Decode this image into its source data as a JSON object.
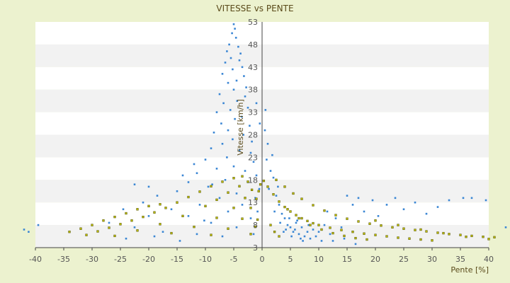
{
  "chart_data": {
    "type": "scatter",
    "title": "VITESSE vs PENTE",
    "xlabel": "Pente [%]",
    "ylabel": "Vitesse [km/h]",
    "xlim": [
      -40,
      40
    ],
    "ylim": [
      3,
      53
    ],
    "x_ticks": [
      "-40",
      "-35",
      "-30",
      "-25",
      "-20",
      "-15",
      "-10",
      "-5",
      "0",
      "5",
      "10",
      "15",
      "20",
      "25",
      "30",
      "35",
      "40"
    ],
    "y_ticks": [
      "3",
      "8",
      "13",
      "18",
      "23",
      "28",
      "33",
      "38",
      "43",
      "48",
      "53"
    ],
    "grid": "horizontal bands",
    "legend": "none",
    "colors": {
      "background": "#ecf2cf",
      "plot_band_light": "#ffffff",
      "plot_band_dark": "#f2f2f2",
      "series_primary": "#3a86d4",
      "series_secondary": "#b9b800",
      "axis": "#444444"
    },
    "series": [
      {
        "points": [
          [
            -5.0,
            52.5
          ],
          [
            -4.8,
            51.5
          ],
          [
            -5.3,
            50.5
          ],
          [
            -4.6,
            49.5
          ],
          [
            -5.8,
            48.0
          ],
          [
            -4.2,
            47.5
          ],
          [
            -6.2,
            46.5
          ],
          [
            -3.8,
            46.0
          ],
          [
            -5.5,
            45.0
          ],
          [
            -4.0,
            44.5
          ],
          [
            -6.5,
            44.0
          ],
          [
            -3.5,
            43.0
          ],
          [
            -5.2,
            42.5
          ],
          [
            -7.0,
            41.5
          ],
          [
            -3.2,
            41.0
          ],
          [
            -4.5,
            40.0
          ],
          [
            -6.0,
            39.5
          ],
          [
            -2.8,
            38.5
          ],
          [
            -5.0,
            38.0
          ],
          [
            -7.5,
            37.0
          ],
          [
            -3.0,
            36.5
          ],
          [
            -4.4,
            35.5
          ],
          [
            -6.8,
            35.0
          ],
          [
            -2.5,
            34.0
          ],
          [
            -5.6,
            33.5
          ],
          [
            -8.0,
            33.0
          ],
          [
            -3.6,
            32.0
          ],
          [
            -4.8,
            31.5
          ],
          [
            -7.2,
            30.5
          ],
          [
            -2.2,
            30.0
          ],
          [
            -6.0,
            29.0
          ],
          [
            -8.5,
            28.5
          ],
          [
            -3.3,
            28.0
          ],
          [
            -5.2,
            27.0
          ],
          [
            -1.8,
            26.5
          ],
          [
            -7.0,
            26.0
          ],
          [
            -9.0,
            25.0
          ],
          [
            -4.0,
            24.5
          ],
          [
            -2.0,
            24.0
          ],
          [
            -6.2,
            23.0
          ],
          [
            -10.0,
            22.5
          ],
          [
            -1.5,
            22.0
          ],
          [
            -5.0,
            21.0
          ],
          [
            -8.0,
            20.5
          ],
          [
            -3.0,
            20.0
          ],
          [
            -11.5,
            19.5
          ],
          [
            -1.0,
            19.0
          ],
          [
            -6.5,
            18.0
          ],
          [
            -13.0,
            17.5
          ],
          [
            -2.5,
            17.5
          ],
          [
            -9.5,
            16.5
          ],
          [
            -0.5,
            16.0
          ],
          [
            -15.0,
            15.5
          ],
          [
            -4.5,
            15.0
          ],
          [
            -18.5,
            14.5
          ],
          [
            -7.5,
            14.0
          ],
          [
            -1.2,
            14.0
          ],
          [
            -21.0,
            13.0
          ],
          [
            -11.0,
            12.5
          ],
          [
            -3.5,
            12.5
          ],
          [
            -24.5,
            11.5
          ],
          [
            -16.0,
            11.5
          ],
          [
            -6.0,
            11.0
          ],
          [
            -0.8,
            11.0
          ],
          [
            -20.0,
            10.0
          ],
          [
            -13.0,
            10.0
          ],
          [
            -2.0,
            9.5
          ],
          [
            -27.0,
            8.5
          ],
          [
            -9.0,
            8.5
          ],
          [
            -22.5,
            7.5
          ],
          [
            -4.5,
            7.5
          ],
          [
            -17.5,
            6.5
          ],
          [
            -11.5,
            6.0
          ],
          [
            -1.5,
            6.0
          ],
          [
            -24.0,
            5.0
          ],
          [
            -19.0,
            5.5
          ],
          [
            -7.0,
            5.5
          ],
          [
            -14.5,
            4.5
          ],
          [
            0.5,
            29.0
          ],
          [
            1.0,
            26.0
          ],
          [
            0.8,
            22.5
          ],
          [
            1.5,
            20.0
          ],
          [
            2.0,
            18.5
          ],
          [
            1.2,
            16.0
          ],
          [
            2.5,
            14.5
          ],
          [
            3.0,
            12.5
          ],
          [
            2.2,
            11.0
          ],
          [
            3.5,
            10.5
          ],
          [
            4.0,
            9.5
          ],
          [
            3.2,
            8.5
          ],
          [
            4.5,
            8.0
          ],
          [
            5.0,
            7.5
          ],
          [
            4.2,
            7.0
          ],
          [
            5.5,
            6.5
          ],
          [
            6.0,
            8.5
          ],
          [
            6.5,
            6.0
          ],
          [
            7.0,
            7.5
          ],
          [
            7.5,
            5.5
          ],
          [
            8.0,
            6.5
          ],
          [
            8.5,
            5.0
          ],
          [
            9.0,
            7.0
          ],
          [
            5.2,
            5.5
          ],
          [
            6.2,
            9.0
          ],
          [
            7.2,
            4.5
          ],
          [
            8.2,
            8.0
          ],
          [
            9.5,
            5.5
          ],
          [
            10.0,
            6.5
          ],
          [
            10.5,
            4.5
          ],
          [
            3.8,
            6.5
          ],
          [
            4.8,
            9.5
          ],
          [
            5.8,
            7.0
          ],
          [
            6.8,
            5.0
          ],
          [
            11.0,
            8.0
          ],
          [
            12.0,
            6.0
          ],
          [
            13.0,
            9.5
          ],
          [
            14.0,
            7.5
          ],
          [
            15.0,
            14.5
          ],
          [
            16.0,
            12.5
          ],
          [
            17.0,
            14.0
          ],
          [
            18.0,
            11.0
          ],
          [
            19.5,
            13.5
          ],
          [
            20.5,
            10.0
          ],
          [
            22.0,
            12.5
          ],
          [
            23.5,
            14.0
          ],
          [
            25.0,
            11.5
          ],
          [
            27.0,
            13.0
          ],
          [
            29.0,
            10.5
          ],
          [
            31.0,
            12.0
          ],
          [
            33.0,
            13.5
          ],
          [
            35.5,
            14.0
          ],
          [
            37.0,
            14.0
          ],
          [
            39.5,
            13.5
          ],
          [
            12.5,
            4.5
          ],
          [
            14.5,
            5.0
          ],
          [
            16.5,
            3.8
          ],
          [
            11.5,
            11.0
          ],
          [
            -42.0,
            7.0
          ],
          [
            -41.2,
            6.5
          ],
          [
            -39.5,
            8.0
          ],
          [
            43.0,
            7.5
          ],
          [
            44.0,
            8.5
          ],
          [
            -20.0,
            16.5
          ],
          [
            -22.5,
            17.0
          ],
          [
            -1.0,
            35.0
          ],
          [
            0.6,
            33.5
          ],
          [
            -0.4,
            30.5
          ],
          [
            1.8,
            23.5
          ],
          [
            2.8,
            16.5
          ],
          [
            -12.0,
            21.5
          ],
          [
            -14.0,
            19.0
          ],
          [
            -8.8,
            17.0
          ],
          [
            -10.2,
            9.0
          ]
        ]
      },
      {
        "points": [
          [
            -34.0,
            6.5
          ],
          [
            -32.0,
            7.2
          ],
          [
            -30.0,
            8.0
          ],
          [
            -28.0,
            9.0
          ],
          [
            -26.0,
            9.8
          ],
          [
            -24.0,
            10.6
          ],
          [
            -22.0,
            11.5
          ],
          [
            -20.0,
            12.2
          ],
          [
            -18.0,
            12.6
          ],
          [
            -31.0,
            5.8
          ],
          [
            -29.0,
            6.6
          ],
          [
            -27.0,
            7.4
          ],
          [
            -25.0,
            8.2
          ],
          [
            -23.0,
            9.0
          ],
          [
            -21.0,
            9.8
          ],
          [
            -19.0,
            10.8
          ],
          [
            -17.0,
            11.8
          ],
          [
            -15.0,
            13.0
          ],
          [
            -13.0,
            14.2
          ],
          [
            -11.0,
            15.4
          ],
          [
            -9.0,
            16.6
          ],
          [
            -7.0,
            17.6
          ],
          [
            -5.0,
            18.4
          ],
          [
            -3.5,
            18.8
          ],
          [
            -26.0,
            5.6
          ],
          [
            -22.0,
            6.8
          ],
          [
            -18.0,
            8.2
          ],
          [
            -14.0,
            10.0
          ],
          [
            -10.0,
            12.2
          ],
          [
            -8.0,
            13.6
          ],
          [
            -6.0,
            15.2
          ],
          [
            -4.0,
            16.6
          ],
          [
            -2.5,
            17.6
          ],
          [
            -16.0,
            6.2
          ],
          [
            -12.0,
            7.6
          ],
          [
            -8.0,
            9.6
          ],
          [
            -5.0,
            11.8
          ],
          [
            -3.0,
            14.0
          ],
          [
            -1.8,
            15.8
          ],
          [
            -9.0,
            5.8
          ],
          [
            -6.0,
            7.2
          ],
          [
            -3.5,
            9.4
          ],
          [
            -2.0,
            11.8
          ],
          [
            -1.0,
            13.8
          ],
          [
            -0.6,
            15.5
          ],
          [
            -0.3,
            17.0
          ],
          [
            0.3,
            17.8
          ],
          [
            1.0,
            16.5
          ],
          [
            2.0,
            14.8
          ],
          [
            3.0,
            13.2
          ],
          [
            4.0,
            12.0
          ],
          [
            5.0,
            11.0
          ],
          [
            6.0,
            10.2
          ],
          [
            7.0,
            9.5
          ],
          [
            8.0,
            8.9
          ],
          [
            9.0,
            8.4
          ],
          [
            10.0,
            8.0
          ],
          [
            12.0,
            7.4
          ],
          [
            14.0,
            6.9
          ],
          [
            16.0,
            6.5
          ],
          [
            18.0,
            6.1
          ],
          [
            20.0,
            5.8
          ],
          [
            22.0,
            5.5
          ],
          [
            24.0,
            5.2
          ],
          [
            26.0,
            5.0
          ],
          [
            28.0,
            4.8
          ],
          [
            30.0,
            4.6
          ],
          [
            2.5,
            18.0
          ],
          [
            4.0,
            16.5
          ],
          [
            5.5,
            15.0
          ],
          [
            7.0,
            13.8
          ],
          [
            9.0,
            12.4
          ],
          [
            11.0,
            11.2
          ],
          [
            13.0,
            10.2
          ],
          [
            15.0,
            9.4
          ],
          [
            17.0,
            8.8
          ],
          [
            19.0,
            8.3
          ],
          [
            21.0,
            7.9
          ],
          [
            23.0,
            7.5
          ],
          [
            25.0,
            7.2
          ],
          [
            27.0,
            6.9
          ],
          [
            29.0,
            6.6
          ],
          [
            31.0,
            6.3
          ],
          [
            33.0,
            6.0
          ],
          [
            35.0,
            5.8
          ],
          [
            37.0,
            5.6
          ],
          [
            39.0,
            5.4
          ],
          [
            41.0,
            5.3
          ],
          [
            4.5,
            11.5
          ],
          [
            6.5,
            9.5
          ],
          [
            8.5,
            8.0
          ],
          [
            10.5,
            7.0
          ],
          [
            12.5,
            6.2
          ],
          [
            14.5,
            5.6
          ],
          [
            16.5,
            5.1
          ],
          [
            18.5,
            4.8
          ],
          [
            20.0,
            9.0
          ],
          [
            24.0,
            8.0
          ],
          [
            28.0,
            7.0
          ],
          [
            32.0,
            6.2
          ],
          [
            36.0,
            5.4
          ],
          [
            40.0,
            4.9
          ],
          [
            -2.0,
            6.0
          ],
          [
            -1.2,
            7.6
          ],
          [
            -0.8,
            9.2
          ],
          [
            1.5,
            8.0
          ],
          [
            2.2,
            6.5
          ],
          [
            3.0,
            5.5
          ]
        ]
      }
    ]
  }
}
